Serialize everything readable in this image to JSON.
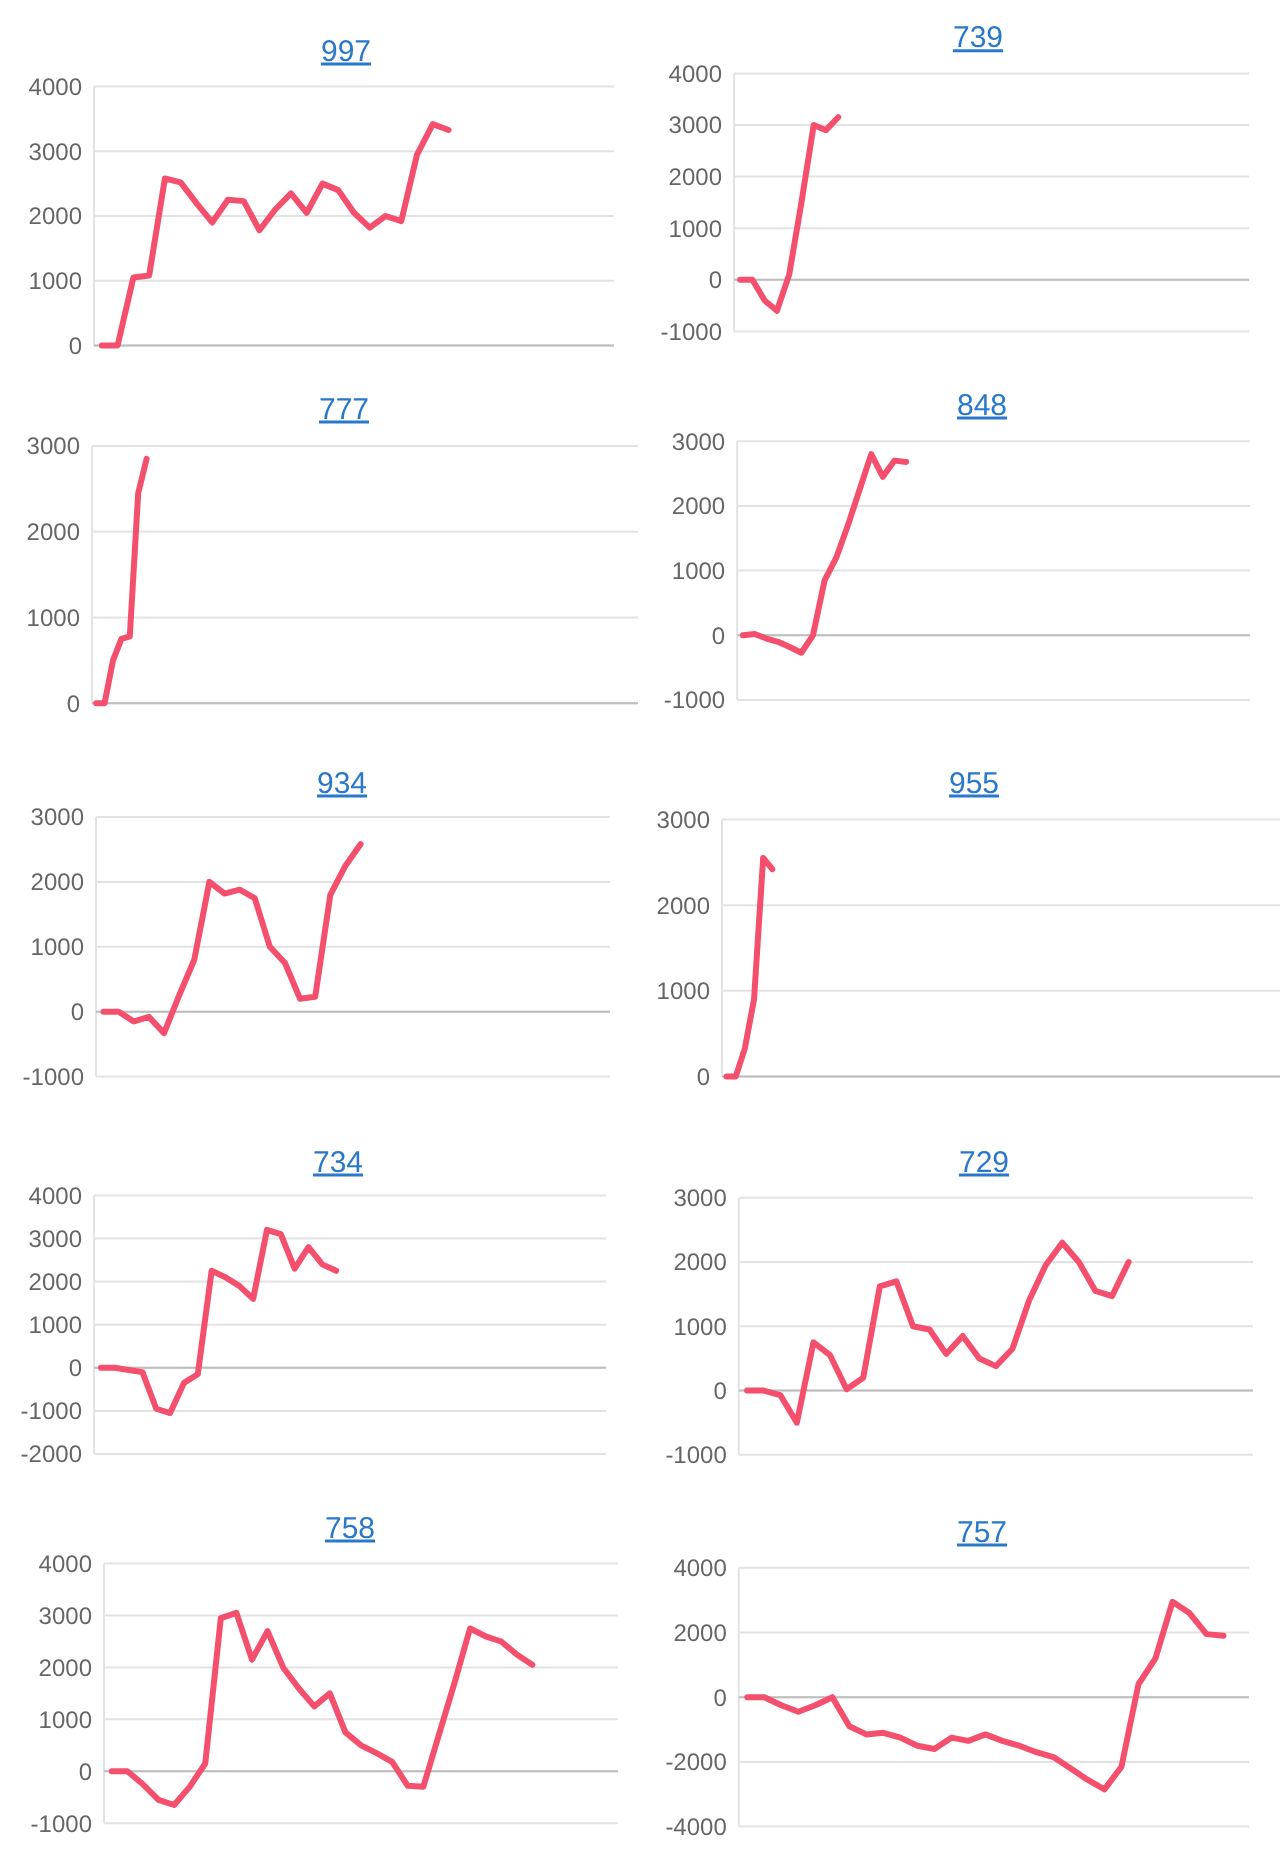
{
  "chart_data": [
    {
      "type": "line",
      "title": "997",
      "categories": [
        null,
        null,
        null,
        null,
        null,
        null,
        null,
        null,
        null,
        null,
        null,
        null,
        null,
        null,
        null,
        null,
        null,
        null,
        null,
        null,
        null,
        null,
        null,
        null,
        null,
        null,
        null,
        null,
        null,
        null,
        null,
        null,
        null
      ],
      "values": [
        0,
        0,
        1050,
        1080,
        2580,
        2520,
        2200,
        1900,
        2250,
        2230,
        1780,
        2100,
        2350,
        2050,
        2500,
        2400,
        2050,
        1820,
        2000,
        1920,
        2950,
        3420,
        3330,
        null,
        null,
        null,
        null,
        null,
        null,
        null,
        null,
        null,
        null
      ],
      "color": "#f4506e",
      "ylim": [
        0,
        4000
      ],
      "yticks": [
        0,
        1000,
        2000,
        3000,
        4000
      ],
      "grid": "y",
      "tick_labels": "y"
    },
    {
      "type": "line",
      "title": "739",
      "categories": [
        null,
        null,
        null,
        null,
        null,
        null,
        null,
        null,
        null,
        null,
        null,
        null,
        null,
        null,
        null,
        null,
        null,
        null,
        null,
        null,
        null,
        null,
        null,
        null,
        null,
        null,
        null,
        null,
        null,
        null,
        null,
        null,
        null,
        null,
        null,
        null,
        null,
        null,
        null,
        null,
        null,
        null
      ],
      "values": [
        0,
        0,
        -400,
        -600,
        100,
        1500,
        3000,
        2900,
        3150,
        null,
        null,
        null,
        null,
        null,
        null,
        null,
        null,
        null,
        null,
        null,
        null,
        null,
        null,
        null,
        null,
        null,
        null,
        null,
        null,
        null,
        null,
        null,
        null,
        null,
        null,
        null,
        null,
        null,
        null,
        null,
        null,
        null
      ],
      "color": "#f4506e",
      "ylim": [
        -1000,
        4000
      ],
      "yticks": [
        -1000,
        0,
        1000,
        2000,
        3000,
        4000
      ],
      "grid": "y",
      "tick_labels": "y"
    },
    {
      "type": "line",
      "title": "777",
      "categories": [
        null,
        null,
        null,
        null,
        null,
        null,
        null,
        null,
        null,
        null,
        null,
        null,
        null,
        null,
        null,
        null,
        null,
        null,
        null,
        null,
        null,
        null,
        null,
        null,
        null,
        null,
        null,
        null,
        null,
        null,
        null,
        null,
        null,
        null,
        null,
        null,
        null,
        null,
        null,
        null,
        null,
        null,
        null,
        null,
        null,
        null,
        null,
        null,
        null,
        null,
        null,
        null,
        null,
        null,
        null,
        null,
        null,
        null,
        null,
        null,
        null,
        null,
        null,
        null,
        null
      ],
      "values": [
        0,
        0,
        500,
        750,
        780,
        2450,
        2850,
        null,
        null,
        null,
        null,
        null,
        null,
        null,
        null,
        null,
        null,
        null,
        null,
        null,
        null,
        null,
        null,
        null,
        null,
        null,
        null,
        null,
        null,
        null,
        null,
        null,
        null,
        null,
        null,
        null,
        null,
        null,
        null,
        null,
        null,
        null,
        null,
        null,
        null,
        null,
        null,
        null,
        null,
        null,
        null,
        null,
        null,
        null,
        null,
        null,
        null,
        null,
        null,
        null,
        null,
        null,
        null,
        null,
        null
      ],
      "color": "#f4506e",
      "ylim": [
        0,
        3000
      ],
      "yticks": [
        0,
        1000,
        2000,
        3000
      ],
      "grid": "y",
      "tick_labels": "y"
    },
    {
      "type": "line",
      "title": "848",
      "categories": [
        null,
        null,
        null,
        null,
        null,
        null,
        null,
        null,
        null,
        null,
        null,
        null,
        null,
        null,
        null,
        null,
        null,
        null,
        null,
        null,
        null,
        null,
        null,
        null,
        null,
        null,
        null,
        null,
        null,
        null,
        null,
        null,
        null,
        null,
        null,
        null,
        null,
        null,
        null,
        null,
        null,
        null,
        null,
        null
      ],
      "values": [
        0,
        20,
        -50,
        -100,
        -180,
        -270,
        0,
        850,
        1200,
        1700,
        2250,
        2800,
        2450,
        2700,
        2680,
        null,
        null,
        null,
        null,
        null,
        null,
        null,
        null,
        null,
        null,
        null,
        null,
        null,
        null,
        null,
        null,
        null,
        null,
        null,
        null,
        null,
        null,
        null,
        null,
        null,
        null,
        null,
        null,
        null
      ],
      "color": "#f4506e",
      "ylim": [
        -1000,
        3000
      ],
      "yticks": [
        -1000,
        0,
        1000,
        2000,
        3000
      ],
      "grid": "y",
      "tick_labels": "y"
    },
    {
      "type": "line",
      "title": "934",
      "categories": [
        null,
        null,
        null,
        null,
        null,
        null,
        null,
        null,
        null,
        null,
        null,
        null,
        null,
        null,
        null,
        null,
        null,
        null,
        null,
        null,
        null,
        null,
        null,
        null,
        null,
        null,
        null,
        null,
        null,
        null,
        null,
        null,
        null,
        null
      ],
      "values": [
        0,
        0,
        -150,
        -80,
        -330,
        250,
        800,
        2000,
        1820,
        1880,
        1750,
        1000,
        750,
        200,
        230,
        1800,
        2250,
        2580,
        null,
        null,
        null,
        null,
        null,
        null,
        null,
        null,
        null,
        null,
        null,
        null,
        null,
        null,
        null,
        null
      ],
      "color": "#f4506e",
      "ylim": [
        -1000,
        3000
      ],
      "yticks": [
        -1000,
        0,
        1000,
        2000,
        3000
      ],
      "grid": "y",
      "tick_labels": "y"
    },
    {
      "type": "line",
      "title": "955",
      "categories": [
        null,
        null,
        null,
        null,
        null,
        null,
        null,
        null,
        null,
        null,
        null,
        null,
        null,
        null,
        null,
        null,
        null,
        null,
        null,
        null,
        null,
        null,
        null,
        null,
        null,
        null,
        null,
        null,
        null,
        null,
        null,
        null,
        null,
        null,
        null,
        null,
        null,
        null,
        null,
        null,
        null,
        null,
        null,
        null,
        null,
        null,
        null,
        null,
        null,
        null,
        null,
        null,
        null,
        null,
        null,
        null,
        null,
        null,
        null,
        null,
        null
      ],
      "values": [
        0,
        0,
        330,
        900,
        2550,
        2420,
        null,
        null,
        null,
        null,
        null,
        null,
        null,
        null,
        null,
        null,
        null,
        null,
        null,
        null,
        null,
        null,
        null,
        null,
        null,
        null,
        null,
        null,
        null,
        null,
        null,
        null,
        null,
        null,
        null,
        null,
        null,
        null,
        null,
        null,
        null,
        null,
        null,
        null,
        null,
        null,
        null,
        null,
        null,
        null,
        null,
        null,
        null,
        null,
        null,
        null,
        null,
        null,
        null,
        null,
        null
      ],
      "color": "#f4506e",
      "ylim": [
        0,
        3000
      ],
      "yticks": [
        0,
        1000,
        2000,
        3000
      ],
      "grid": "y",
      "tick_labels": "y"
    },
    {
      "type": "line",
      "title": "734",
      "categories": [
        null,
        null,
        null,
        null,
        null,
        null,
        null,
        null,
        null,
        null,
        null,
        null,
        null,
        null,
        null,
        null,
        null,
        null,
        null,
        null,
        null,
        null,
        null,
        null,
        null,
        null,
        null,
        null,
        null,
        null,
        null,
        null,
        null,
        null,
        null,
        null,
        null
      ],
      "values": [
        0,
        0,
        -50,
        -100,
        -950,
        -1050,
        -350,
        -150,
        2250,
        2100,
        1900,
        1600,
        3200,
        3100,
        2300,
        2800,
        2400,
        2250,
        null,
        null,
        null,
        null,
        null,
        null,
        null,
        null,
        null,
        null,
        null,
        null,
        null,
        null,
        null,
        null,
        null,
        null,
        null
      ],
      "color": "#f4506e",
      "ylim": [
        -2000,
        4000
      ],
      "yticks": [
        -2000,
        -1000,
        0,
        1000,
        2000,
        3000,
        4000
      ],
      "grid": "y",
      "tick_labels": "y"
    },
    {
      "type": "line",
      "title": "729",
      "categories": [
        null,
        null,
        null,
        null,
        null,
        null,
        null,
        null,
        null,
        null,
        null,
        null,
        null,
        null,
        null,
        null,
        null,
        null,
        null,
        null,
        null,
        null,
        null,
        null,
        null,
        null,
        null,
        null,
        null,
        null,
        null
      ],
      "values": [
        0,
        0,
        -70,
        -500,
        750,
        550,
        20,
        200,
        1620,
        1700,
        1000,
        950,
        570,
        850,
        500,
        380,
        650,
        1400,
        1950,
        2300,
        2000,
        1550,
        1470,
        2000,
        null,
        null,
        null,
        null,
        null,
        null,
        null
      ],
      "color": "#f4506e",
      "ylim": [
        -1000,
        3000
      ],
      "yticks": [
        -1000,
        0,
        1000,
        2000,
        3000
      ],
      "grid": "y",
      "tick_labels": "y"
    },
    {
      "type": "line",
      "title": "758",
      "categories": [
        null,
        null,
        null,
        null,
        null,
        null,
        null,
        null,
        null,
        null,
        null,
        null,
        null,
        null,
        null,
        null,
        null,
        null,
        null,
        null,
        null,
        null,
        null,
        null,
        null,
        null,
        null,
        null,
        null,
        null,
        null,
        null,
        null
      ],
      "values": [
        0,
        0,
        -250,
        -550,
        -650,
        -300,
        150,
        2950,
        3050,
        2150,
        2700,
        2000,
        1600,
        1250,
        1500,
        750,
        500,
        350,
        180,
        -280,
        -300,
        700,
        1700,
        2750,
        2600,
        2500,
        2250,
        2050,
        null,
        null,
        null,
        null,
        null
      ],
      "color": "#f4506e",
      "ylim": [
        -1000,
        4000
      ],
      "yticks": [
        -1000,
        0,
        1000,
        2000,
        3000,
        4000
      ],
      "grid": "y",
      "tick_labels": "y"
    },
    {
      "type": "line",
      "title": "757",
      "categories": [
        null,
        null,
        null,
        null,
        null,
        null,
        null,
        null,
        null,
        null,
        null,
        null,
        null,
        null,
        null,
        null,
        null,
        null,
        null,
        null,
        null,
        null,
        null,
        null,
        null,
        null,
        null,
        null,
        null,
        null
      ],
      "values": [
        0,
        0,
        -250,
        -450,
        -250,
        0,
        -900,
        -1150,
        -1100,
        -1250,
        -1500,
        -1600,
        -1250,
        -1350,
        -1150,
        -1350,
        -1500,
        -1700,
        -1850,
        -2200,
        -2550,
        -2850,
        -2150,
        400,
        1200,
        2950,
        2600,
        1950,
        1900,
        null
      ],
      "color": "#f4506e",
      "ylim": [
        -4000,
        4000
      ],
      "yticks": [
        -4000,
        -2000,
        0,
        2000,
        4000
      ],
      "grid": "y",
      "tick_labels": "y"
    }
  ]
}
